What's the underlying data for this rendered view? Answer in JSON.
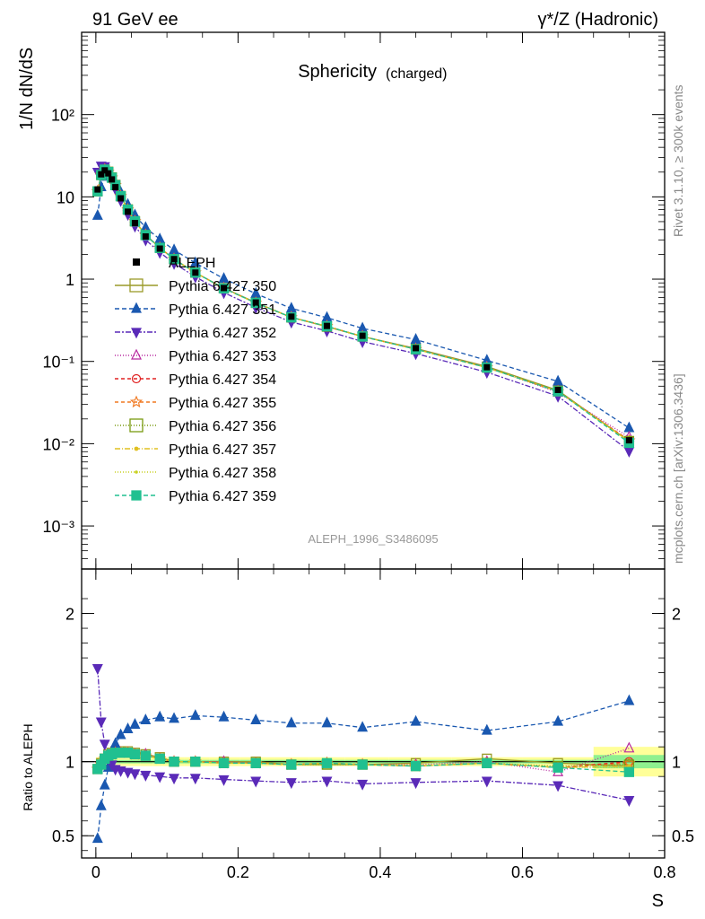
{
  "header": {
    "left": "91 GeV ee",
    "right": "γ*/Z (Hadronic)"
  },
  "side": {
    "rivet": "Rivet 3.1.10, ≥ 300k events",
    "mcplots": "mcplots.cern.ch [arXiv:1306.3436]"
  },
  "chart_data": {
    "type": "line",
    "title": "Sphericity",
    "subtitle": "(charged)",
    "xlabel": "S",
    "ylabel": "1/N dN/dS",
    "ratio_ylabel": "Ratio to ALEPH",
    "analysis_tag": "ALEPH_1996_S3486095",
    "xlim": [
      -0.02,
      0.8
    ],
    "ylim_log": [
      0.0003,
      1000
    ],
    "ratio_ylim": [
      0.35,
      2.3
    ],
    "x_ticks": [
      "0",
      "0.2",
      "0.4",
      "0.6",
      "0.8"
    ],
    "y_ticks": [
      "10⁻³",
      "10⁻²",
      "10⁻¹",
      "1",
      "10",
      "10²"
    ],
    "ratio_ticks": [
      "0.5",
      "1",
      "2"
    ],
    "x": [
      0.0025,
      0.0075,
      0.0125,
      0.0175,
      0.0225,
      0.0275,
      0.035,
      0.045,
      0.055,
      0.07,
      0.09,
      0.11,
      0.14,
      0.18,
      0.225,
      0.275,
      0.325,
      0.375,
      0.45,
      0.55,
      0.65,
      0.75
    ],
    "aleph": [
      12.3,
      18.8,
      21.0,
      19.3,
      16.3,
      13.1,
      9.6,
      6.6,
      4.8,
      3.3,
      2.35,
      1.75,
      1.2,
      0.78,
      0.52,
      0.35,
      0.27,
      0.205,
      0.145,
      0.085,
      0.045,
      0.011
    ],
    "legend_title": "ALEPH",
    "series": [
      {
        "name": "Pythia 6.427 350",
        "color": "#9a9a28",
        "marker": "open-square",
        "dash": "",
        "ratio": [
          0.95,
          0.99,
          1.02,
          1.05,
          1.06,
          1.07,
          1.07,
          1.07,
          1.06,
          1.05,
          1.03,
          1.0,
          1.0,
          1.0,
          1.0,
          0.98,
          0.98,
          0.98,
          0.99,
          1.02,
          0.99,
          0.97
        ]
      },
      {
        "name": "Pythia 6.427 351",
        "color": "#1a58b0",
        "marker": "filled-triangle-up",
        "dash": "5,3",
        "ratio": [
          0.48,
          0.7,
          0.84,
          0.96,
          1.05,
          1.12,
          1.18,
          1.22,
          1.25,
          1.28,
          1.3,
          1.29,
          1.31,
          1.3,
          1.28,
          1.26,
          1.26,
          1.23,
          1.27,
          1.21,
          1.27,
          1.41
        ]
      },
      {
        "name": "Pythia 6.427 352",
        "color": "#5a2ab8",
        "marker": "filled-triangle-down",
        "dash": "6,2,2,2",
        "ratio": [
          1.63,
          1.27,
          1.12,
          1.04,
          0.98,
          0.95,
          0.94,
          0.93,
          0.92,
          0.91,
          0.9,
          0.89,
          0.89,
          0.88,
          0.87,
          0.86,
          0.87,
          0.85,
          0.86,
          0.87,
          0.84,
          0.74
        ]
      },
      {
        "name": "Pythia 6.427 353",
        "color": "#b82aa0",
        "marker": "open-triangle-up",
        "dash": "1,2",
        "ratio": [
          0.95,
          0.99,
          1.02,
          1.04,
          1.05,
          1.06,
          1.06,
          1.06,
          1.05,
          1.05,
          1.02,
          1.0,
          1.0,
          1.0,
          0.99,
          0.98,
          0.99,
          0.98,
          0.98,
          1.0,
          0.93,
          1.09
        ]
      },
      {
        "name": "Pythia 6.427 354",
        "color": "#e02020",
        "marker": "open-circle",
        "dash": "4,3",
        "ratio": [
          0.95,
          0.98,
          1.02,
          1.04,
          1.05,
          1.06,
          1.06,
          1.06,
          1.05,
          1.04,
          1.02,
          1.0,
          1.0,
          0.99,
          0.99,
          0.98,
          0.99,
          0.98,
          0.97,
          0.99,
          0.96,
          1.0
        ]
      },
      {
        "name": "Pythia 6.427 355",
        "color": "#f07820",
        "marker": "open-star",
        "dash": "4,3",
        "ratio": [
          0.95,
          0.98,
          1.02,
          1.04,
          1.05,
          1.06,
          1.06,
          1.06,
          1.05,
          1.04,
          1.02,
          1.0,
          1.0,
          0.99,
          0.99,
          0.98,
          0.99,
          0.98,
          0.97,
          0.99,
          0.96,
          0.99
        ]
      },
      {
        "name": "Pythia 6.427 356",
        "color": "#7a9a10",
        "marker": "open-square",
        "dash": "1,2",
        "ratio": [
          0.95,
          0.98,
          1.02,
          1.04,
          1.05,
          1.06,
          1.06,
          1.06,
          1.05,
          1.04,
          1.02,
          1.0,
          1.0,
          0.99,
          0.99,
          0.98,
          0.98,
          0.98,
          0.97,
          0.99,
          0.97,
          0.98
        ]
      },
      {
        "name": "Pythia 6.427 357",
        "color": "#e0c020",
        "marker": "dot",
        "dash": "6,2,1,2",
        "ratio": [
          0.95,
          0.98,
          1.02,
          1.04,
          1.05,
          1.06,
          1.06,
          1.06,
          1.05,
          1.04,
          1.02,
          1.0,
          1.0,
          0.99,
          0.99,
          0.98,
          0.99,
          0.98,
          0.97,
          0.99,
          0.96,
          0.97
        ]
      },
      {
        "name": "Pythia 6.427 358",
        "color": "#c8d020",
        "marker": "small-dot",
        "dash": "1,2",
        "ratio": [
          0.95,
          0.98,
          1.02,
          1.04,
          1.05,
          1.06,
          1.06,
          1.06,
          1.05,
          1.04,
          1.02,
          1.0,
          1.0,
          0.99,
          0.99,
          0.98,
          0.99,
          0.98,
          0.97,
          0.99,
          0.96,
          0.96
        ]
      },
      {
        "name": "Pythia 6.427 359",
        "color": "#20c090",
        "marker": "filled-square",
        "dash": "5,3",
        "ratio": [
          0.95,
          0.98,
          1.02,
          1.04,
          1.05,
          1.06,
          1.06,
          1.06,
          1.05,
          1.04,
          1.02,
          1.0,
          1.0,
          0.99,
          0.99,
          0.98,
          0.99,
          0.98,
          0.97,
          0.99,
          0.96,
          0.93
        ]
      }
    ]
  }
}
